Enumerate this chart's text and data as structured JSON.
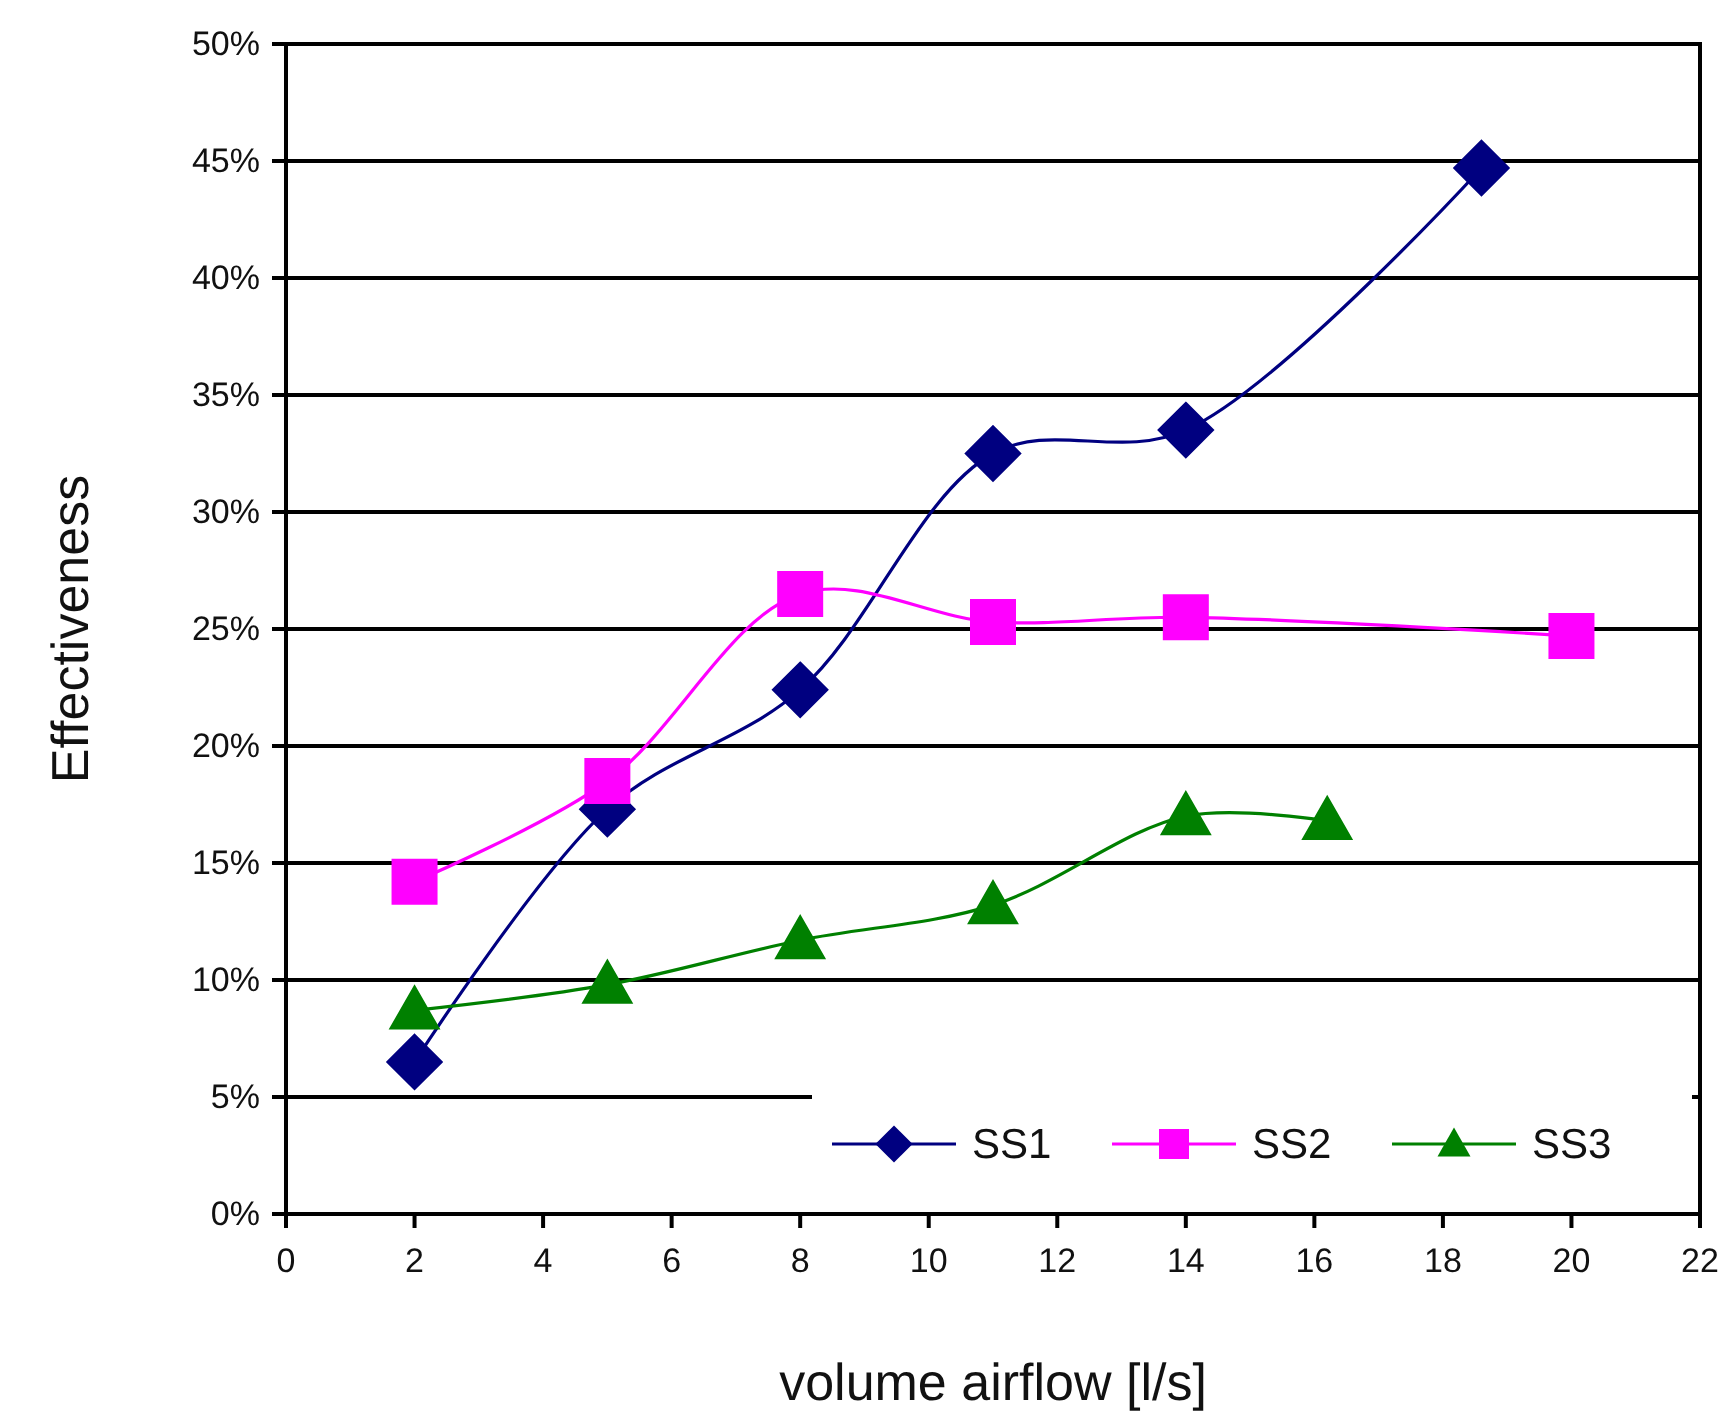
{
  "chart_data": {
    "type": "line",
    "xlabel": "volume airflow [l/s]",
    "ylabel": "Effectiveness",
    "xlim": [
      0,
      22
    ],
    "xticks": [
      0,
      2,
      4,
      6,
      8,
      10,
      12,
      14,
      16,
      18,
      20,
      22
    ],
    "ylim": [
      0,
      50
    ],
    "yticks": [
      {
        "value": 0,
        "label": "0%"
      },
      {
        "value": 5,
        "label": "5%"
      },
      {
        "value": 10,
        "label": "10%"
      },
      {
        "value": 15,
        "label": "15%"
      },
      {
        "value": 20,
        "label": "20%"
      },
      {
        "value": 25,
        "label": "25%"
      },
      {
        "value": 30,
        "label": "30%"
      },
      {
        "value": 35,
        "label": "35%"
      },
      {
        "value": 40,
        "label": "40%"
      },
      {
        "value": 45,
        "label": "45%"
      },
      {
        "value": 50,
        "label": "50%"
      }
    ],
    "grid": "y",
    "legend": "bottom right",
    "line_style": "solid",
    "series": [
      {
        "name": "SS1",
        "color": "#000080",
        "marker": "diamond",
        "x": [
          2,
          5,
          8,
          11,
          14,
          18.6
        ],
        "values": [
          6.5,
          17.3,
          22.4,
          32.5,
          33.5,
          44.7
        ]
      },
      {
        "name": "SS2",
        "color": "#ff00ff",
        "marker": "square",
        "x": [
          2,
          5,
          8,
          11,
          14,
          20
        ],
        "values": [
          14.2,
          18.5,
          26.5,
          25.3,
          25.5,
          24.7
        ]
      },
      {
        "name": "SS3",
        "color": "#008000",
        "marker": "triangle",
        "x": [
          2,
          5,
          8,
          11,
          14,
          16.2
        ],
        "values": [
          8.7,
          9.8,
          11.7,
          13.2,
          17.0,
          16.8
        ]
      }
    ]
  }
}
